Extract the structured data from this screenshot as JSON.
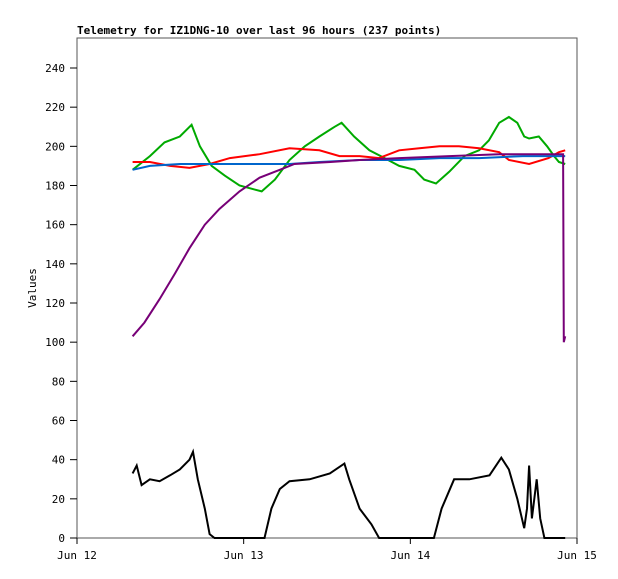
{
  "chart_data": {
    "type": "line",
    "title": "Telemetry for IZ1DNG-10 over last 96 hours (237 points)",
    "xlabel": "",
    "ylabel": "Values",
    "x_unit": "hours since Jun 12 00:00",
    "xlim": [
      0,
      72
    ],
    "ylim": [
      0,
      255
    ],
    "yticks": [
      0,
      20,
      40,
      60,
      80,
      100,
      120,
      140,
      160,
      180,
      200,
      220,
      240
    ],
    "xticks": [
      {
        "value": 0,
        "label": "Jun 12"
      },
      {
        "value": 24,
        "label": "Jun 13"
      },
      {
        "value": 48,
        "label": "Jun 14"
      },
      {
        "value": 72,
        "label": "Jun 15"
      }
    ],
    "grid": false,
    "series": [
      {
        "name": "green",
        "color": "#00aa00",
        "x": [
          8.0,
          10.5,
          12.6,
          14.8,
          16.5,
          17.7,
          19.4,
          21.3,
          23.4,
          26.6,
          28.5,
          30.6,
          32.8,
          34.9,
          37.1,
          38.1,
          39.9,
          42.1,
          44.3,
          46.4,
          48.6,
          50.0,
          51.7,
          53.6,
          55.8,
          57.9,
          59.3,
          60.8,
          62.2,
          63.4,
          64.4,
          65.1,
          66.5,
          67.7,
          68.7,
          69.4,
          70.3
        ],
        "y": [
          188,
          195,
          202,
          205,
          211,
          200,
          190,
          185,
          180,
          177,
          183,
          193,
          200,
          205,
          210,
          212,
          205,
          198,
          194,
          190,
          188,
          183,
          181,
          187,
          195,
          198,
          203,
          212,
          215,
          212,
          205,
          204,
          205,
          200,
          195,
          192,
          191
        ]
      },
      {
        "name": "red",
        "color": "#ff0000",
        "x": [
          8.0,
          10.5,
          13.4,
          16.2,
          19.1,
          22.0,
          26.3,
          30.6,
          34.9,
          37.8,
          40.7,
          43.5,
          46.4,
          49.3,
          52.2,
          55.0,
          57.9,
          60.8,
          62.2,
          65.1,
          67.9,
          69.4,
          70.3
        ],
        "y": [
          192,
          192,
          190,
          189,
          191,
          194,
          196,
          199,
          198,
          195,
          195,
          194,
          198,
          199,
          200,
          200,
          199,
          197,
          193,
          191,
          194,
          197,
          198
        ]
      },
      {
        "name": "blue",
        "color": "#0066cc",
        "x": [
          8.0,
          10.5,
          14.8,
          20.5,
          26.3,
          30.6,
          34.9,
          40.7,
          46.4,
          52.2,
          57.9,
          64.2,
          70.3
        ],
        "y": [
          188,
          190,
          191,
          191,
          191,
          191,
          192,
          193,
          193,
          194,
          194,
          195,
          195
        ]
      },
      {
        "name": "purple",
        "color": "#770077",
        "x": [
          8.0,
          9.7,
          11.9,
          14.1,
          16.2,
          18.4,
          20.5,
          23.4,
          26.3,
          29.2,
          31.3,
          36.5,
          40.7,
          46.4,
          53.6,
          60.8,
          70.0,
          70.1,
          70.3
        ],
        "y": [
          103,
          110,
          122,
          135,
          148,
          160,
          168,
          177,
          184,
          188,
          191,
          192,
          193,
          194,
          195,
          196,
          196,
          100,
          103
        ]
      },
      {
        "name": "black",
        "color": "#000000",
        "x": [
          8.0,
          8.6,
          9.3,
          10.5,
          11.9,
          13.4,
          14.8,
          16.2,
          16.7,
          17.4,
          18.4,
          19.1,
          19.8,
          27.0,
          28.0,
          29.2,
          30.6,
          33.5,
          36.4,
          38.5,
          39.2,
          40.7,
          42.4,
          43.5,
          51.4,
          52.5,
          54.3,
          56.5,
          59.4,
          61.1,
          62.2,
          63.4,
          64.4,
          64.8,
          65.1,
          65.5,
          66.2,
          66.7,
          67.3,
          70.3
        ],
        "y": [
          33,
          37,
          27,
          30,
          29,
          32,
          35,
          40,
          44,
          30,
          15,
          2,
          0,
          0,
          15,
          25,
          29,
          30,
          33,
          38,
          30,
          15,
          7,
          0,
          0,
          15,
          30,
          30,
          32,
          41,
          35,
          20,
          5,
          15,
          37,
          10,
          30,
          10,
          0,
          0
        ]
      }
    ]
  }
}
